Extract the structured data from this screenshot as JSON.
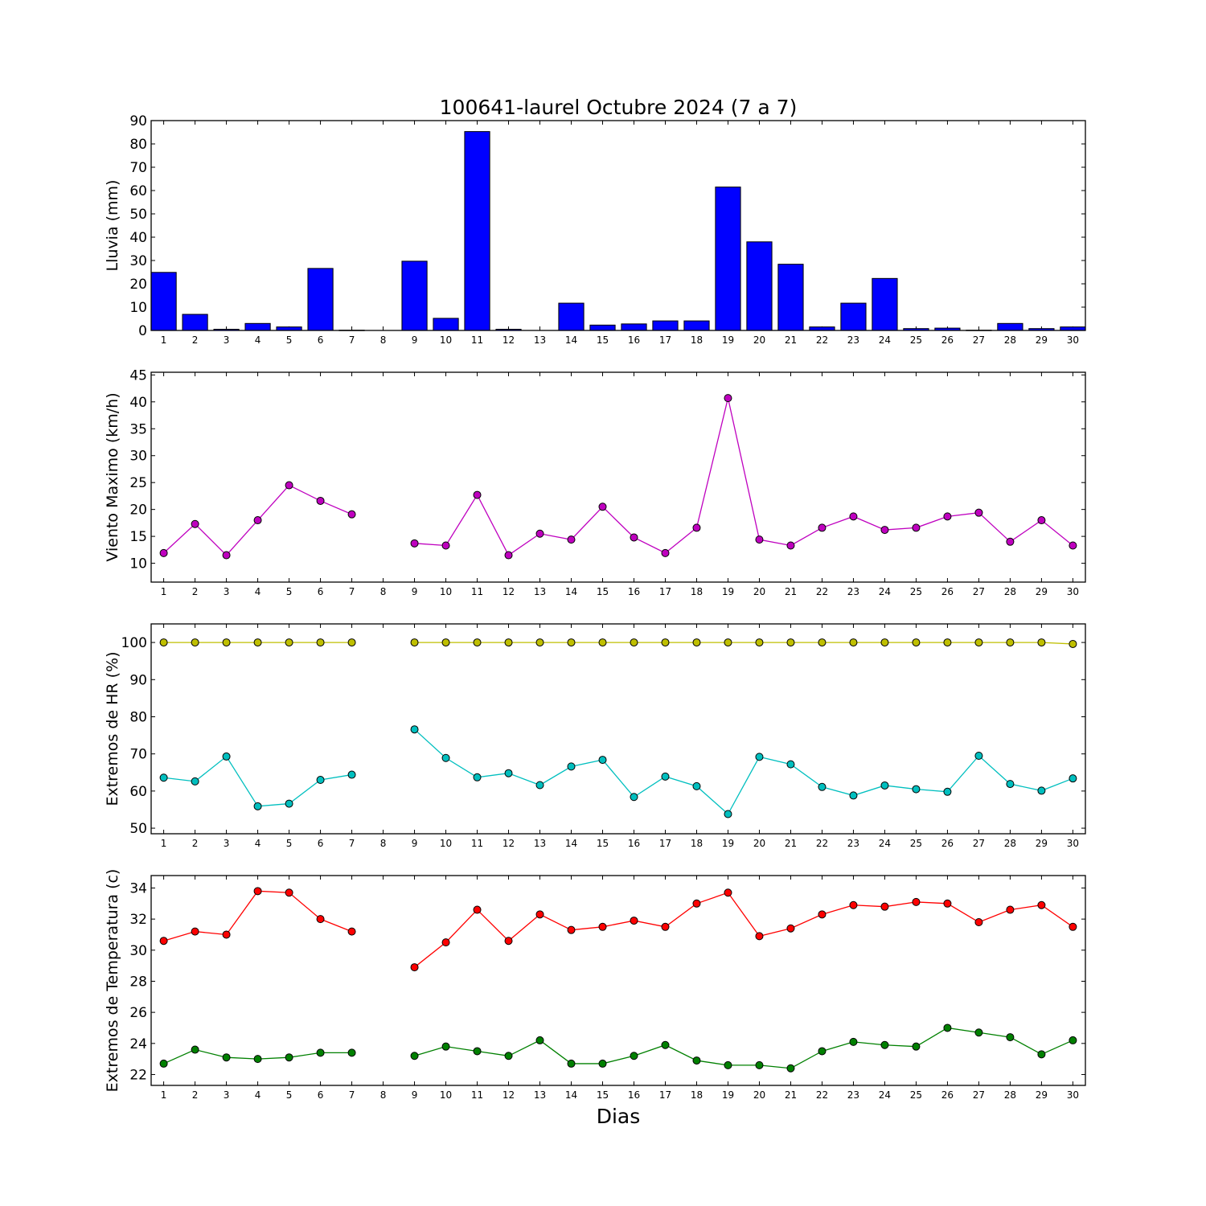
{
  "title": "100641-laurel Octubre 2024  (7 a 7)",
  "xlabel": "Dias",
  "colors": {
    "rain": "#0000ff",
    "wind": "#bf00bf",
    "hr_max": "#bfbf00",
    "hr_min": "#00bfbf",
    "temp_max": "#ff0000",
    "temp_min": "#008000"
  },
  "chart_data": [
    {
      "type": "bar",
      "ylabel": "Lluvia (mm)",
      "ylim": [
        0,
        90
      ],
      "yticks": [
        0,
        10,
        20,
        30,
        40,
        50,
        60,
        70,
        80,
        90
      ],
      "categories": [
        1,
        2,
        3,
        4,
        5,
        6,
        7,
        8,
        9,
        10,
        11,
        12,
        13,
        14,
        15,
        16,
        17,
        18,
        19,
        20,
        21,
        22,
        23,
        24,
        25,
        26,
        27,
        28,
        29,
        30
      ],
      "values": [
        24.9,
        6.9,
        0.5,
        3.0,
        1.5,
        26.6,
        0.1,
        0,
        29.7,
        5.2,
        85.3,
        0.5,
        0,
        11.7,
        2.3,
        2.8,
        4.1,
        4.1,
        61.5,
        38.0,
        28.4,
        1.5,
        11.7,
        22.3,
        0.8,
        1.0,
        0.1,
        3.0,
        0.8,
        1.5
      ]
    },
    {
      "type": "line",
      "ylabel": "Viento Maximo (km/h)",
      "ylim": [
        6.5,
        45.5
      ],
      "yticks": [
        10,
        15,
        20,
        25,
        30,
        35,
        40,
        45
      ],
      "x": [
        1,
        2,
        3,
        4,
        5,
        6,
        7,
        8,
        9,
        10,
        11,
        12,
        13,
        14,
        15,
        16,
        17,
        18,
        19,
        20,
        21,
        22,
        23,
        24,
        25,
        26,
        27,
        28,
        29,
        30
      ],
      "series": [
        {
          "values": [
            11.9,
            17.3,
            11.5,
            18.0,
            24.5,
            21.6,
            19.1,
            null,
            13.7,
            13.3,
            22.7,
            11.5,
            15.5,
            14.4,
            20.5,
            14.8,
            11.9,
            16.6,
            40.7,
            14.4,
            13.3,
            16.6,
            18.7,
            16.2,
            16.6,
            18.7,
            19.4,
            14.0,
            18.0,
            13.3
          ]
        }
      ]
    },
    {
      "type": "line",
      "ylabel": "Extremos de HR (%)",
      "ylim": [
        48.5,
        105
      ],
      "yticks": [
        50,
        60,
        70,
        80,
        90,
        100
      ],
      "x": [
        1,
        2,
        3,
        4,
        5,
        6,
        7,
        8,
        9,
        10,
        11,
        12,
        13,
        14,
        15,
        16,
        17,
        18,
        19,
        20,
        21,
        22,
        23,
        24,
        25,
        26,
        27,
        28,
        29,
        30
      ],
      "series": [
        {
          "values": [
            100,
            100,
            100,
            100,
            100,
            100,
            100,
            null,
            100,
            100,
            100,
            100,
            100,
            100,
            100,
            100,
            100,
            100,
            100,
            100,
            100,
            100,
            100,
            100,
            100,
            100,
            100,
            100,
            100,
            99.6
          ]
        },
        {
          "values": [
            63.6,
            62.6,
            69.3,
            55.9,
            56.6,
            63.0,
            64.4,
            null,
            76.6,
            68.9,
            63.7,
            64.8,
            61.6,
            66.6,
            68.4,
            58.4,
            63.9,
            61.3,
            53.8,
            69.2,
            67.2,
            61.1,
            58.8,
            61.5,
            60.5,
            59.8,
            69.5,
            61.9,
            60.1,
            63.4
          ]
        }
      ]
    },
    {
      "type": "line",
      "ylabel": "Extremos de Temperatura (c)",
      "ylim": [
        21.3,
        34.8
      ],
      "yticks": [
        22,
        24,
        26,
        28,
        30,
        32,
        34
      ],
      "x": [
        1,
        2,
        3,
        4,
        5,
        6,
        7,
        8,
        9,
        10,
        11,
        12,
        13,
        14,
        15,
        16,
        17,
        18,
        19,
        20,
        21,
        22,
        23,
        24,
        25,
        26,
        27,
        28,
        29,
        30
      ],
      "series": [
        {
          "values": [
            30.6,
            31.2,
            31.0,
            33.8,
            33.7,
            32.0,
            31.2,
            null,
            28.9,
            30.5,
            32.6,
            30.6,
            32.3,
            31.3,
            31.5,
            31.9,
            31.5,
            33.0,
            33.7,
            30.9,
            31.4,
            32.3,
            32.9,
            32.8,
            33.1,
            33.0,
            31.8,
            32.6,
            32.9,
            31.5
          ]
        },
        {
          "values": [
            22.7,
            23.6,
            23.1,
            23.0,
            23.1,
            23.4,
            23.4,
            null,
            23.2,
            23.8,
            23.5,
            23.2,
            24.2,
            22.7,
            22.7,
            23.2,
            23.9,
            22.9,
            22.6,
            22.6,
            22.4,
            23.5,
            24.1,
            23.9,
            23.8,
            25.0,
            24.7,
            24.4,
            23.3,
            24.2
          ]
        }
      ]
    }
  ]
}
